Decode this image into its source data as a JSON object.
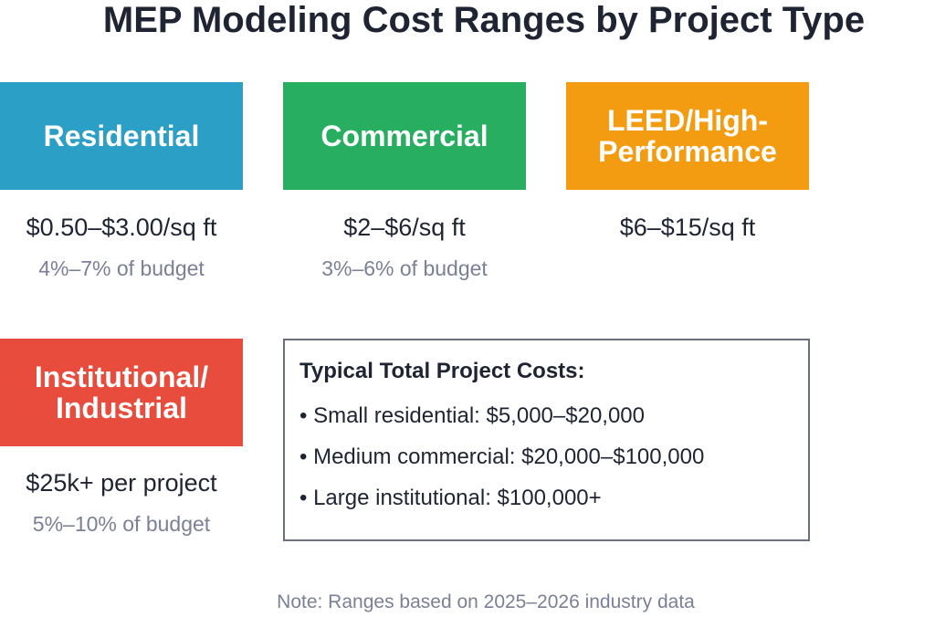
{
  "title": "MEP Modeling Cost Ranges by Project Type",
  "cards": [
    {
      "label_lines": [
        "Residential"
      ],
      "range": "$0.50–$3.00/sq ft",
      "budget": "4%–7% of budget"
    },
    {
      "label_lines": [
        "Commercial"
      ],
      "range": "$2–$6/sq ft",
      "budget": "3%–6% of budget"
    },
    {
      "label_lines": [
        "LEED/High-",
        "Performance"
      ],
      "range": "$6–$15/sq ft"
    },
    {
      "label_lines": [
        "Institutional/",
        "Industrial"
      ],
      "range": "$25k+ per project",
      "budget": "5%–10% of budget"
    }
  ],
  "summary": {
    "title": "Typical Total Project Costs:",
    "items": [
      "Small residential: $5,000–$20,000",
      "Medium commercial: $20,000–$100,000",
      "Large institutional: $100,000+"
    ]
  },
  "note": "Note: Ranges based on 2025–2026 industry data"
}
